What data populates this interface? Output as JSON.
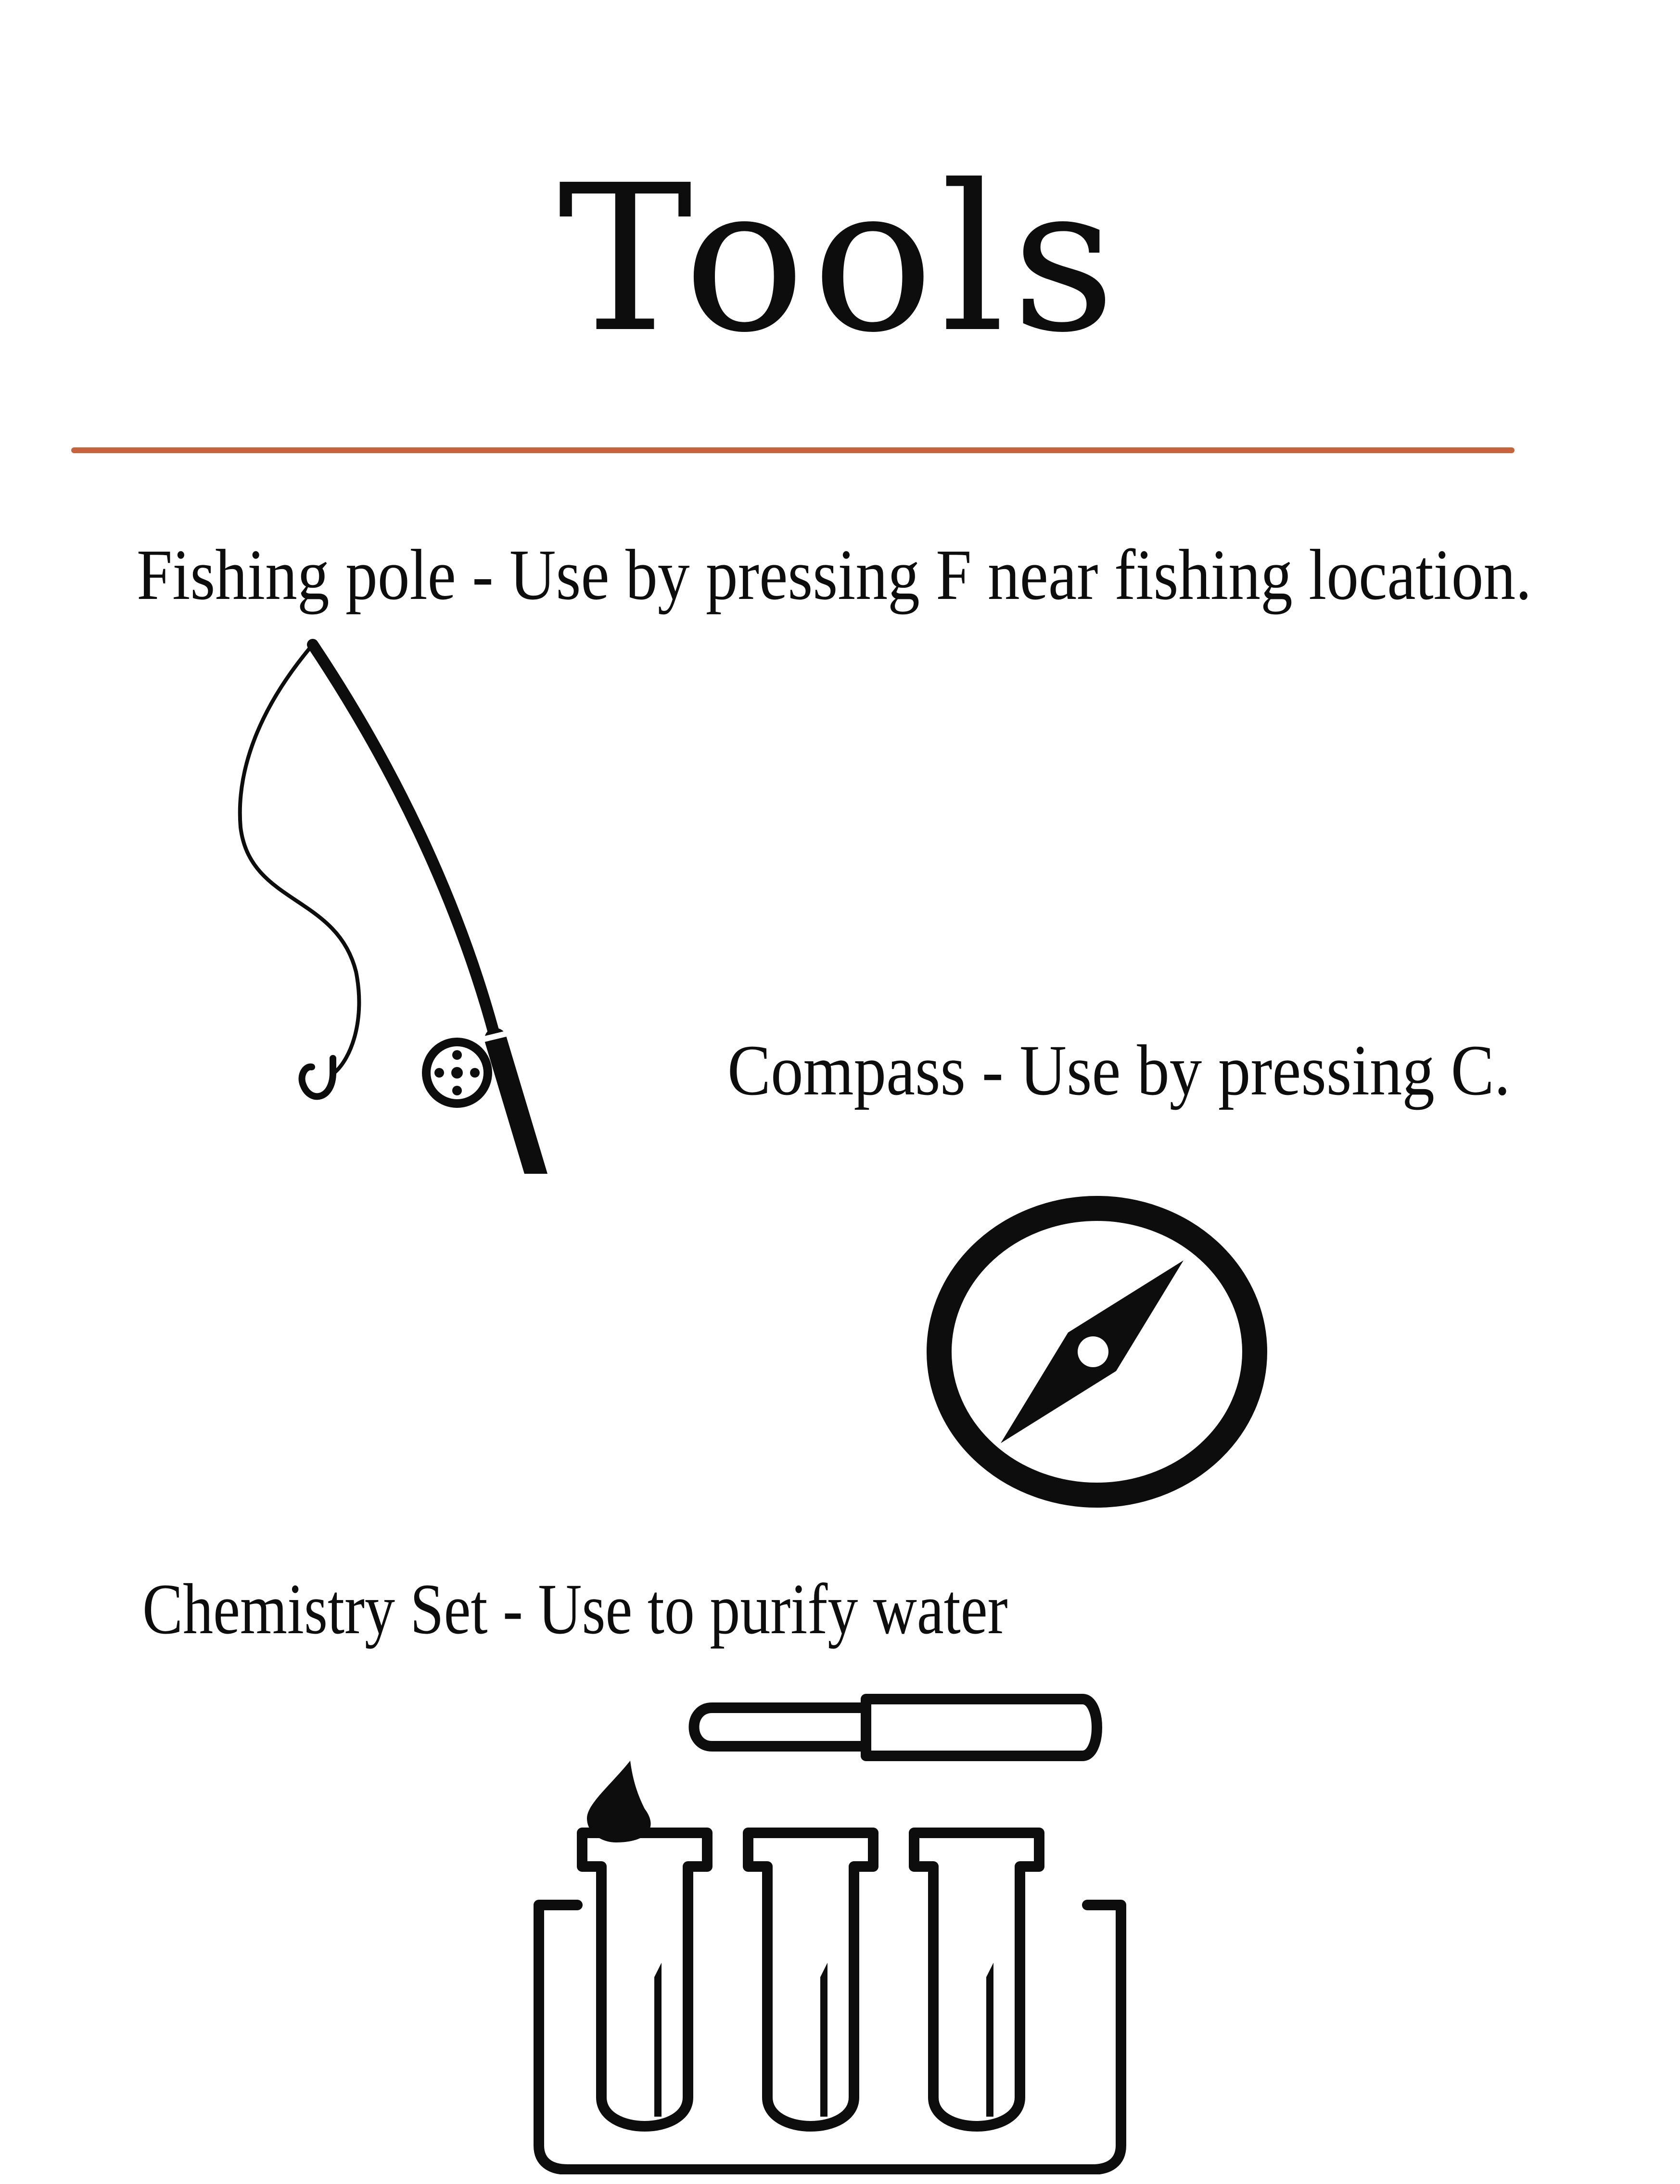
{
  "page": {
    "title": "Tools",
    "divider_color": "#c8643d"
  },
  "tools": [
    {
      "label": "Fishing pole - Use by pressing F near fishing location.",
      "icon": "fishing-rod-icon"
    },
    {
      "label": "Compass - Use by pressing C.",
      "icon": "compass-icon"
    },
    {
      "label": "Chemistry Set - Use to purify water",
      "icon": "chemistry-set-icon"
    }
  ]
}
